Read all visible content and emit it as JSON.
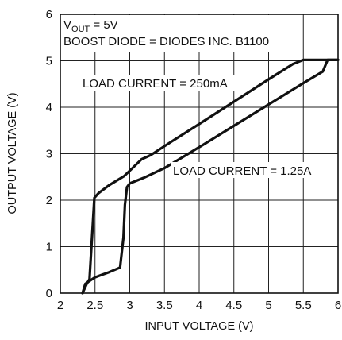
{
  "chart_data": {
    "type": "line",
    "xlabel": "INPUT VOLTAGE (V)",
    "ylabel": "OUTPUT VOLTAGE (V)",
    "xlim": [
      2,
      6
    ],
    "ylim": [
      0,
      6
    ],
    "x_ticks": [
      2,
      2.5,
      3,
      3.5,
      4,
      4.5,
      5,
      5.5,
      6
    ],
    "x_tick_labels": [
      "2",
      "2.5",
      "3",
      "3.5",
      "4",
      "4.5",
      "5",
      "5.5",
      "6"
    ],
    "y_ticks": [
      0,
      1,
      2,
      3,
      4,
      5,
      6
    ],
    "y_tick_labels": [
      "0",
      "1",
      "2",
      "3",
      "4",
      "5",
      "6"
    ],
    "grid": true,
    "annotations": {
      "vout_prefix": "V",
      "vout_subscript": "OUT",
      "vout_suffix": " = 5V",
      "boost_diode": "BOOST DIODE = DIODES INC. B1100",
      "load_250": "LOAD CURRENT = 250mA",
      "load_125": "LOAD CURRENT = 1.25A"
    },
    "series": [
      {
        "x": [
          2.32,
          2.38,
          2.42,
          2.49,
          2.55,
          2.7,
          2.92,
          3.08,
          3.17,
          3.3,
          3.6,
          4.0,
          4.5,
          5.0,
          5.35,
          5.5,
          6.0
        ],
        "y": [
          0.0,
          0.2,
          0.3,
          2.05,
          2.15,
          2.32,
          2.52,
          2.75,
          2.88,
          2.97,
          3.26,
          3.64,
          4.12,
          4.6,
          4.93,
          5.02,
          5.02
        ]
      },
      {
        "x": [
          2.32,
          2.36,
          2.5,
          2.7,
          2.86,
          2.91,
          2.93,
          2.96,
          3.0,
          3.2,
          3.5,
          4.0,
          4.5,
          5.0,
          5.5,
          5.78,
          5.85,
          6.0
        ],
        "y": [
          0.0,
          0.2,
          0.34,
          0.45,
          0.55,
          1.2,
          1.9,
          2.28,
          2.36,
          2.48,
          2.69,
          3.14,
          3.6,
          4.06,
          4.52,
          4.77,
          5.02,
          5.02
        ]
      }
    ]
  }
}
